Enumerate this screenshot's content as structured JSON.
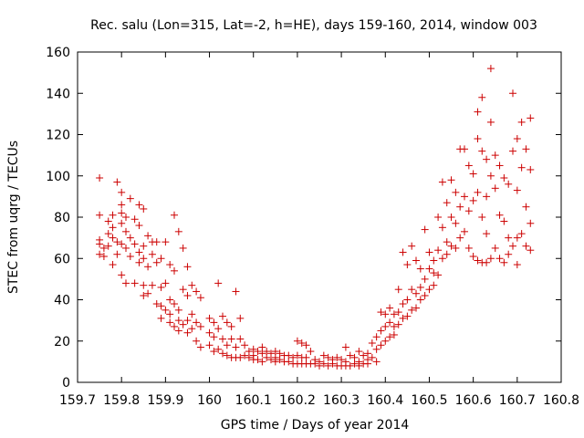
{
  "chart_data": {
    "type": "scatter",
    "title": "Rec. salu (Lon=315, Lat=-2, h=HE), days 159-160, 2014, window 003",
    "xlabel": "GPS time / Days of year 2014",
    "ylabel": "STEC from uqrg / TECUs",
    "xlim": [
      159.7,
      160.8
    ],
    "ylim": [
      0,
      160
    ],
    "xticks": [
      159.7,
      159.8,
      159.9,
      160,
      160.1,
      160.2,
      160.3,
      160.4,
      160.5,
      160.6,
      160.7,
      160.8
    ],
    "xtick_labels": [
      "159.7",
      "159.8",
      "159.9",
      "160",
      "160.1",
      "160.2",
      "160.3",
      "160.4",
      "160.5",
      "160.6",
      "160.7",
      "160.8"
    ],
    "yticks": [
      0,
      20,
      40,
      60,
      80,
      100,
      120,
      140,
      160
    ],
    "ytick_labels": [
      "0",
      "20",
      "40",
      "60",
      "80",
      "100",
      "120",
      "140",
      "160"
    ],
    "grid": false,
    "marker": "+",
    "color": "#cc0000",
    "series": [
      {
        "points": [
          [
            159.75,
            99
          ],
          [
            159.75,
            81
          ],
          [
            159.75,
            69
          ],
          [
            159.75,
            67
          ],
          [
            159.75,
            62
          ],
          [
            159.76,
            65
          ],
          [
            159.76,
            61
          ],
          [
            159.77,
            78
          ],
          [
            159.77,
            72
          ],
          [
            159.77,
            66
          ],
          [
            159.78,
            81
          ],
          [
            159.78,
            75
          ],
          [
            159.78,
            70
          ],
          [
            159.78,
            57
          ],
          [
            159.79,
            97
          ],
          [
            159.79,
            68
          ],
          [
            159.79,
            62
          ],
          [
            159.8,
            92
          ],
          [
            159.8,
            86
          ],
          [
            159.8,
            82
          ],
          [
            159.8,
            77
          ],
          [
            159.8,
            67
          ],
          [
            159.8,
            52
          ],
          [
            159.81,
            80
          ],
          [
            159.81,
            73
          ],
          [
            159.81,
            65
          ],
          [
            159.81,
            48
          ],
          [
            159.82,
            89
          ],
          [
            159.82,
            70
          ],
          [
            159.82,
            61
          ],
          [
            159.83,
            79
          ],
          [
            159.83,
            67
          ],
          [
            159.83,
            48
          ],
          [
            159.84,
            86
          ],
          [
            159.84,
            76
          ],
          [
            159.84,
            63
          ],
          [
            159.84,
            58
          ],
          [
            159.85,
            84
          ],
          [
            159.85,
            66
          ],
          [
            159.85,
            60
          ],
          [
            159.85,
            47
          ],
          [
            159.85,
            42
          ],
          [
            159.86,
            71
          ],
          [
            159.86,
            56
          ],
          [
            159.86,
            43
          ],
          [
            159.87,
            68
          ],
          [
            159.87,
            62
          ],
          [
            159.87,
            47
          ],
          [
            159.88,
            68
          ],
          [
            159.88,
            58
          ],
          [
            159.88,
            38
          ],
          [
            159.89,
            60
          ],
          [
            159.89,
            46
          ],
          [
            159.89,
            37
          ],
          [
            159.89,
            31
          ],
          [
            159.9,
            68
          ],
          [
            159.9,
            48
          ],
          [
            159.9,
            35
          ],
          [
            159.91,
            57
          ],
          [
            159.91,
            40
          ],
          [
            159.91,
            33
          ],
          [
            159.91,
            29
          ],
          [
            159.92,
            81
          ],
          [
            159.92,
            54
          ],
          [
            159.92,
            38
          ],
          [
            159.92,
            27
          ],
          [
            159.93,
            73
          ],
          [
            159.93,
            35
          ],
          [
            159.93,
            30
          ],
          [
            159.93,
            25
          ],
          [
            159.94,
            65
          ],
          [
            159.94,
            45
          ],
          [
            159.94,
            28
          ],
          [
            159.95,
            56
          ],
          [
            159.95,
            42
          ],
          [
            159.95,
            30
          ],
          [
            159.95,
            24
          ],
          [
            159.96,
            47
          ],
          [
            159.96,
            33
          ],
          [
            159.96,
            26
          ],
          [
            159.97,
            44
          ],
          [
            159.97,
            29
          ],
          [
            159.97,
            20
          ],
          [
            159.98,
            41
          ],
          [
            159.98,
            27
          ],
          [
            159.98,
            17
          ],
          [
            160.0,
            31
          ],
          [
            160.0,
            24
          ],
          [
            160.0,
            18
          ],
          [
            160.01,
            29
          ],
          [
            160.01,
            22
          ],
          [
            160.01,
            15
          ],
          [
            160.02,
            48
          ],
          [
            160.02,
            26
          ],
          [
            160.02,
            16
          ],
          [
            160.03,
            32
          ],
          [
            160.03,
            21
          ],
          [
            160.03,
            14
          ],
          [
            160.04,
            29
          ],
          [
            160.04,
            18
          ],
          [
            160.04,
            13
          ],
          [
            160.05,
            27
          ],
          [
            160.05,
            21
          ],
          [
            160.05,
            12
          ],
          [
            160.06,
            44
          ],
          [
            160.06,
            17
          ],
          [
            160.06,
            12
          ],
          [
            160.07,
            31
          ],
          [
            160.07,
            21
          ],
          [
            160.07,
            12
          ],
          [
            160.08,
            18
          ],
          [
            160.08,
            13
          ],
          [
            160.09,
            15
          ],
          [
            160.09,
            12
          ],
          [
            160.1,
            16
          ],
          [
            160.1,
            13
          ],
          [
            160.1,
            11
          ],
          [
            160.11,
            15
          ],
          [
            160.11,
            11
          ],
          [
            160.12,
            17
          ],
          [
            160.12,
            14
          ],
          [
            160.12,
            10
          ],
          [
            160.13,
            15
          ],
          [
            160.13,
            12
          ],
          [
            160.14,
            14
          ],
          [
            160.14,
            11
          ],
          [
            160.15,
            15
          ],
          [
            160.15,
            12
          ],
          [
            160.15,
            10
          ],
          [
            160.16,
            14
          ],
          [
            160.16,
            11
          ],
          [
            160.17,
            13
          ],
          [
            160.17,
            10
          ],
          [
            160.18,
            13
          ],
          [
            160.18,
            10
          ],
          [
            160.19,
            12
          ],
          [
            160.19,
            9
          ],
          [
            160.2,
            20
          ],
          [
            160.2,
            13
          ],
          [
            160.2,
            9
          ],
          [
            160.21,
            19
          ],
          [
            160.21,
            12
          ],
          [
            160.21,
            9
          ],
          [
            160.22,
            18
          ],
          [
            160.22,
            12
          ],
          [
            160.22,
            9
          ],
          [
            160.23,
            15
          ],
          [
            160.23,
            9
          ],
          [
            160.24,
            11
          ],
          [
            160.24,
            9
          ],
          [
            160.25,
            10
          ],
          [
            160.25,
            8
          ],
          [
            160.26,
            13
          ],
          [
            160.26,
            9
          ],
          [
            160.27,
            12
          ],
          [
            160.27,
            8
          ],
          [
            160.28,
            11
          ],
          [
            160.28,
            9
          ],
          [
            160.29,
            12
          ],
          [
            160.29,
            8
          ],
          [
            160.3,
            11
          ],
          [
            160.3,
            8
          ],
          [
            160.31,
            17
          ],
          [
            160.31,
            10
          ],
          [
            160.31,
            8
          ],
          [
            160.32,
            13
          ],
          [
            160.32,
            8
          ],
          [
            160.33,
            12
          ],
          [
            160.33,
            9
          ],
          [
            160.34,
            15
          ],
          [
            160.34,
            10
          ],
          [
            160.34,
            8
          ],
          [
            160.35,
            13
          ],
          [
            160.35,
            9
          ],
          [
            160.36,
            14
          ],
          [
            160.36,
            11
          ],
          [
            160.36,
            9
          ],
          [
            160.37,
            19
          ],
          [
            160.37,
            12
          ],
          [
            160.38,
            22
          ],
          [
            160.38,
            16
          ],
          [
            160.38,
            10
          ],
          [
            160.39,
            34
          ],
          [
            160.39,
            25
          ],
          [
            160.39,
            18
          ],
          [
            160.4,
            33
          ],
          [
            160.4,
            27
          ],
          [
            160.4,
            20
          ],
          [
            160.41,
            36
          ],
          [
            160.41,
            29
          ],
          [
            160.41,
            22
          ],
          [
            160.42,
            33
          ],
          [
            160.42,
            27
          ],
          [
            160.42,
            23
          ],
          [
            160.43,
            45
          ],
          [
            160.43,
            34
          ],
          [
            160.43,
            28
          ],
          [
            160.44,
            63
          ],
          [
            160.44,
            38
          ],
          [
            160.44,
            31
          ],
          [
            160.45,
            57
          ],
          [
            160.45,
            40
          ],
          [
            160.45,
            32
          ],
          [
            160.46,
            66
          ],
          [
            160.46,
            45
          ],
          [
            160.46,
            35
          ],
          [
            160.47,
            59
          ],
          [
            160.47,
            43
          ],
          [
            160.47,
            36
          ],
          [
            160.48,
            55
          ],
          [
            160.48,
            46
          ],
          [
            160.48,
            40
          ],
          [
            160.49,
            74
          ],
          [
            160.49,
            50
          ],
          [
            160.49,
            42
          ],
          [
            160.5,
            63
          ],
          [
            160.5,
            55
          ],
          [
            160.5,
            45
          ],
          [
            160.51,
            59
          ],
          [
            160.51,
            53
          ],
          [
            160.51,
            47
          ],
          [
            160.52,
            80
          ],
          [
            160.52,
            64
          ],
          [
            160.52,
            52
          ],
          [
            160.53,
            97
          ],
          [
            160.53,
            75
          ],
          [
            160.53,
            60
          ],
          [
            160.54,
            87
          ],
          [
            160.54,
            68
          ],
          [
            160.54,
            62
          ],
          [
            160.55,
            98
          ],
          [
            160.55,
            80
          ],
          [
            160.55,
            66
          ],
          [
            160.56,
            92
          ],
          [
            160.56,
            77
          ],
          [
            160.56,
            65
          ],
          [
            160.57,
            113
          ],
          [
            160.57,
            85
          ],
          [
            160.57,
            70
          ],
          [
            160.58,
            113
          ],
          [
            160.58,
            90
          ],
          [
            160.58,
            73
          ],
          [
            160.59,
            105
          ],
          [
            160.59,
            83
          ],
          [
            160.59,
            65
          ],
          [
            160.6,
            101
          ],
          [
            160.6,
            88
          ],
          [
            160.6,
            61
          ],
          [
            160.61,
            131
          ],
          [
            160.61,
            118
          ],
          [
            160.61,
            92
          ],
          [
            160.61,
            59
          ],
          [
            160.62,
            138
          ],
          [
            160.62,
            112
          ],
          [
            160.62,
            80
          ],
          [
            160.62,
            58
          ],
          [
            160.63,
            108
          ],
          [
            160.63,
            90
          ],
          [
            160.63,
            72
          ],
          [
            160.63,
            58
          ],
          [
            160.64,
            152
          ],
          [
            160.64,
            126
          ],
          [
            160.64,
            100
          ],
          [
            160.64,
            60
          ],
          [
            160.65,
            110
          ],
          [
            160.65,
            94
          ],
          [
            160.65,
            65
          ],
          [
            160.66,
            105
          ],
          [
            160.66,
            81
          ],
          [
            160.66,
            60
          ],
          [
            160.67,
            99
          ],
          [
            160.67,
            78
          ],
          [
            160.67,
            58
          ],
          [
            160.68,
            96
          ],
          [
            160.68,
            70
          ],
          [
            160.68,
            62
          ],
          [
            160.69,
            140
          ],
          [
            160.69,
            112
          ],
          [
            160.69,
            66
          ],
          [
            160.7,
            118
          ],
          [
            160.7,
            93
          ],
          [
            160.7,
            70
          ],
          [
            160.7,
            57
          ],
          [
            160.71,
            126
          ],
          [
            160.71,
            104
          ],
          [
            160.71,
            72
          ],
          [
            160.72,
            113
          ],
          [
            160.72,
            85
          ],
          [
            160.72,
            66
          ],
          [
            160.73,
            128
          ],
          [
            160.73,
            103
          ],
          [
            160.73,
            77
          ],
          [
            160.73,
            64
          ]
        ]
      }
    ]
  }
}
